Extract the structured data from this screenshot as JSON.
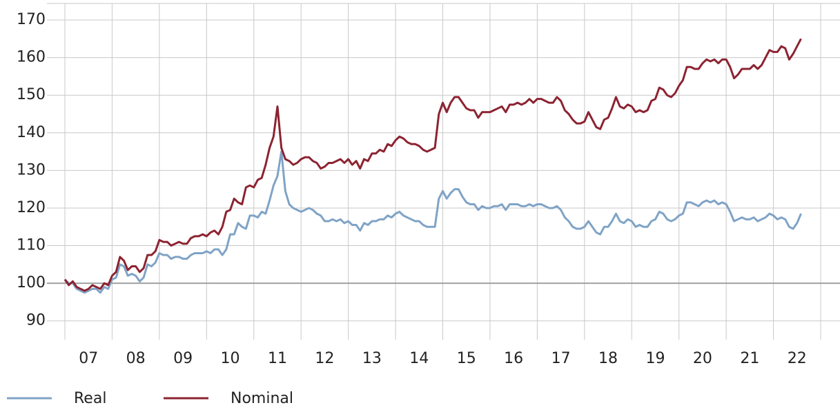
{
  "chart_data": {
    "type": "line",
    "categories": [
      null,
      null,
      null,
      null,
      null,
      null,
      "07",
      null,
      null,
      null,
      null,
      null,
      null,
      null,
      null,
      null,
      null,
      null,
      "08",
      null,
      null,
      null,
      null,
      null,
      null,
      null,
      null,
      null,
      null,
      null,
      "09",
      null,
      null,
      null,
      null,
      null,
      null,
      null,
      null,
      null,
      null,
      null,
      "10",
      null,
      null,
      null,
      null,
      null,
      null,
      null,
      null,
      null,
      null,
      null,
      "11",
      null,
      null,
      null,
      null,
      null,
      null,
      null,
      null,
      null,
      null,
      null,
      "12",
      null,
      null,
      null,
      null,
      null,
      null,
      null,
      null,
      null,
      null,
      null,
      "13",
      null,
      null,
      null,
      null,
      null,
      null,
      null,
      null,
      null,
      null,
      null,
      "14",
      null,
      null,
      null,
      null,
      null,
      null,
      null,
      null,
      null,
      null,
      null,
      "15",
      null,
      null,
      null,
      null,
      null,
      null,
      null,
      null,
      null,
      null,
      null,
      "16",
      null,
      null,
      null,
      null,
      null,
      null,
      null,
      null,
      null,
      null,
      null,
      "17",
      null,
      null,
      null,
      null,
      null,
      null,
      null,
      null,
      null,
      null,
      null,
      "18",
      null,
      null,
      null,
      null,
      null,
      null,
      null,
      null,
      null,
      null,
      null,
      "19",
      null,
      null,
      null,
      null,
      null,
      null,
      null,
      null,
      null,
      null,
      null,
      "20",
      null,
      null,
      null,
      null,
      null,
      null,
      null,
      null,
      null,
      null,
      null,
      "21",
      null,
      null,
      null,
      null,
      null,
      null,
      null,
      null,
      null,
      null,
      null,
      "22",
      null
    ],
    "series": [
      {
        "name": "Real",
        "color": "#7fa3c6",
        "values": [
          101,
          100,
          100,
          98.5,
          98,
          97.5,
          98,
          98.5,
          98.5,
          97.5,
          99,
          98.5,
          101,
          101.5,
          105,
          104.5,
          102,
          102.5,
          102,
          100.5,
          101.5,
          105,
          104.5,
          105.5,
          108,
          107.5,
          107.5,
          106.5,
          107,
          107,
          106.5,
          106.5,
          107.5,
          108,
          108,
          108,
          108.5,
          108,
          109,
          109,
          107.5,
          109,
          113,
          113,
          116,
          115,
          114.5,
          118,
          118,
          117.5,
          119,
          118.5,
          122,
          126,
          128.5,
          135,
          124.5,
          121,
          120,
          119.5,
          119,
          119.5,
          120,
          119.5,
          118.5,
          118,
          116.5,
          116.5,
          117,
          116.5,
          117,
          116,
          116.5,
          115.5,
          115.5,
          114,
          116,
          115.5,
          116.5,
          116.5,
          117,
          117,
          118,
          117.5,
          118.5,
          119,
          118,
          117.5,
          117,
          116.5,
          116.5,
          115.5,
          115,
          115,
          115,
          122.5,
          124.5,
          122.5,
          124,
          125,
          125,
          123,
          121.5,
          121,
          121,
          119.5,
          120.5,
          120,
          120,
          120.5,
          120.5,
          121,
          119.5,
          121,
          121,
          121,
          120.5,
          120.5,
          121,
          120.5,
          121,
          121,
          120.5,
          120,
          120,
          120.5,
          119.5,
          117.5,
          116.5,
          115,
          114.5,
          114.5,
          115,
          116.5,
          115,
          113.5,
          113,
          115,
          115,
          116.5,
          118.5,
          116.5,
          116,
          117,
          116.5,
          115,
          115.5,
          115,
          115,
          116.5,
          117,
          119,
          118.5,
          117,
          116.5,
          117,
          118,
          118.5,
          121.5,
          121.5,
          121,
          120.5,
          121.5,
          122,
          121.5,
          122,
          121,
          121.5,
          121,
          119,
          116.5,
          117,
          117.5,
          117,
          117,
          117.5,
          116.5,
          117,
          117.5,
          118.5,
          118,
          117,
          117.5,
          117,
          115,
          114.5,
          116,
          118.5
        ]
      },
      {
        "name": "Nominal",
        "color": "#8c2331",
        "values": [
          101,
          99.5,
          100.5,
          99,
          98.5,
          98,
          98.5,
          99.5,
          99,
          98.5,
          100,
          99.5,
          102,
          103,
          107,
          106,
          103.5,
          104.5,
          104.5,
          103,
          104,
          107.5,
          107.5,
          108.5,
          111.5,
          111,
          111,
          110,
          110.5,
          111,
          110.5,
          110.5,
          112,
          112.5,
          112.5,
          113,
          112.5,
          113.5,
          114,
          113,
          115,
          119,
          119.5,
          122.5,
          121.5,
          121,
          125.5,
          126,
          125.5,
          127.5,
          128,
          131.5,
          136,
          139,
          147,
          136,
          133,
          132.5,
          131.5,
          132,
          133,
          133.5,
          133.5,
          132.5,
          132,
          130.5,
          131,
          132,
          132,
          132.5,
          133,
          132,
          133,
          131.5,
          132.5,
          130.5,
          133,
          132.5,
          134.5,
          134.5,
          135.5,
          135,
          137,
          136.5,
          138,
          139,
          138.5,
          137.5,
          137,
          137,
          136.5,
          135.5,
          135,
          135.5,
          136,
          145,
          148,
          145.5,
          148,
          149.5,
          149.5,
          148,
          146.5,
          146,
          146,
          144,
          145.5,
          145.5,
          145.5,
          146,
          146.5,
          147,
          145.5,
          147.5,
          147.5,
          148,
          147.5,
          148,
          149,
          148,
          149,
          149,
          148.5,
          148,
          148,
          149.5,
          148.5,
          146,
          145,
          143.5,
          142.5,
          142.5,
          143,
          145.5,
          143.5,
          141.5,
          141,
          143.5,
          144,
          146.5,
          149.5,
          147,
          146.5,
          147.5,
          147,
          145.5,
          146,
          145.5,
          146,
          148.5,
          149,
          152,
          151.5,
          150,
          149.5,
          150.5,
          152.5,
          154,
          157.5,
          157.5,
          157,
          157,
          158.5,
          159.5,
          159,
          159.5,
          158.5,
          159.5,
          159.5,
          157.5,
          154.5,
          155.5,
          157,
          157,
          157,
          158,
          157,
          158,
          160,
          162,
          161.5,
          161.5,
          163,
          162.5,
          159.5,
          161,
          163,
          165
        ]
      }
    ],
    "ylim": [
      85,
      174.4
    ],
    "yticks": [
      90,
      100,
      110,
      120,
      130,
      140,
      150,
      160,
      170
    ],
    "reference_line": 100,
    "grid": true,
    "legend": "bottom-left"
  }
}
